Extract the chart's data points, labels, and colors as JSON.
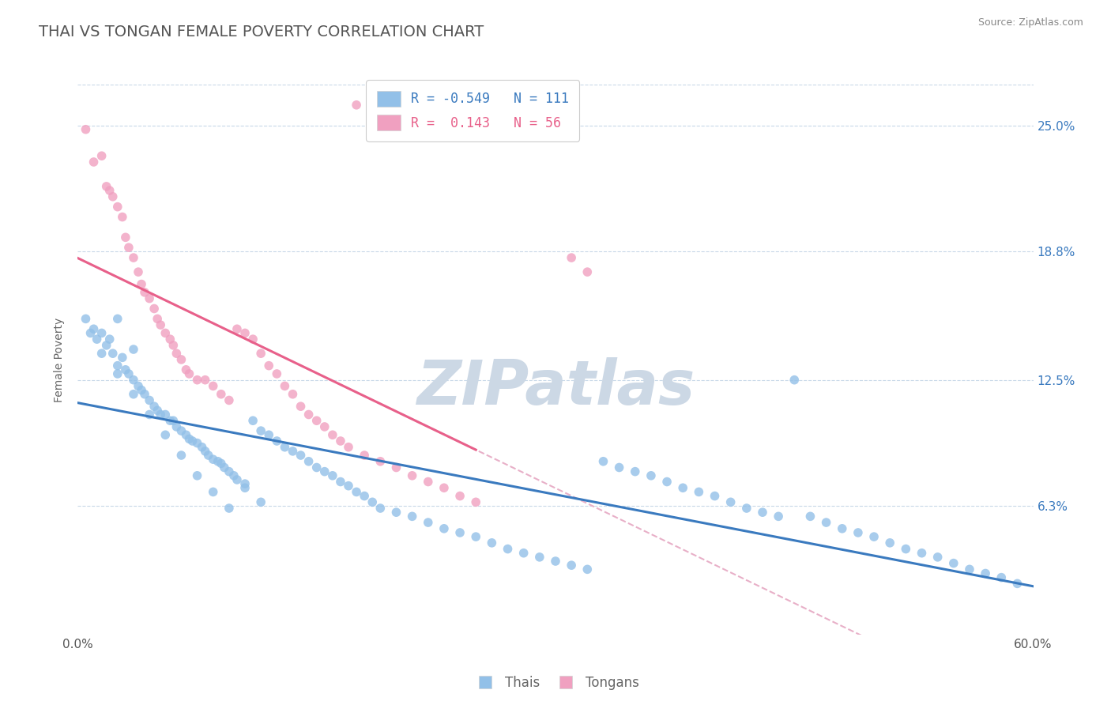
{
  "title": "THAI VS TONGAN FEMALE POVERTY CORRELATION CHART",
  "source": "Source: ZipAtlas.com",
  "ylabel": "Female Poverty",
  "xlim": [
    0.0,
    0.6
  ],
  "ylim": [
    0.0,
    0.27
  ],
  "yticks": [
    0.063,
    0.125,
    0.188,
    0.25
  ],
  "ytick_labels": [
    "6.3%",
    "12.5%",
    "18.8%",
    "25.0%"
  ],
  "xtick_labels_ends": [
    "0.0%",
    "60.0%"
  ],
  "thai_color": "#92c0e8",
  "tongan_color": "#f0a0c0",
  "thai_line_color": "#3a7abf",
  "tongan_line_color": "#e8608a",
  "tongan_dash_color": "#e8b0c8",
  "watermark_color": "#ccd8e5",
  "title_color": "#555555",
  "title_fontsize": 14,
  "axis_label_color": "#666666",
  "tick_color": "#555555",
  "grid_color": "#c8d8e8",
  "thai_scatter": {
    "x": [
      0.005,
      0.008,
      0.01,
      0.012,
      0.015,
      0.018,
      0.02,
      0.022,
      0.025,
      0.028,
      0.03,
      0.032,
      0.035,
      0.038,
      0.04,
      0.042,
      0.045,
      0.048,
      0.05,
      0.052,
      0.055,
      0.058,
      0.06,
      0.062,
      0.065,
      0.068,
      0.07,
      0.072,
      0.075,
      0.078,
      0.08,
      0.082,
      0.085,
      0.088,
      0.09,
      0.092,
      0.095,
      0.098,
      0.1,
      0.105,
      0.11,
      0.115,
      0.12,
      0.125,
      0.13,
      0.135,
      0.14,
      0.145,
      0.15,
      0.155,
      0.16,
      0.165,
      0.17,
      0.175,
      0.18,
      0.185,
      0.19,
      0.2,
      0.21,
      0.22,
      0.23,
      0.24,
      0.25,
      0.26,
      0.27,
      0.28,
      0.29,
      0.3,
      0.31,
      0.32,
      0.33,
      0.34,
      0.35,
      0.36,
      0.37,
      0.38,
      0.39,
      0.4,
      0.41,
      0.42,
      0.43,
      0.44,
      0.45,
      0.46,
      0.47,
      0.48,
      0.49,
      0.5,
      0.51,
      0.52,
      0.53,
      0.54,
      0.55,
      0.56,
      0.57,
      0.58,
      0.59,
      0.015,
      0.025,
      0.035,
      0.045,
      0.055,
      0.065,
      0.075,
      0.085,
      0.095,
      0.105,
      0.115,
      0.025,
      0.035
    ],
    "y": [
      0.155,
      0.148,
      0.15,
      0.145,
      0.148,
      0.142,
      0.145,
      0.138,
      0.132,
      0.136,
      0.13,
      0.128,
      0.125,
      0.122,
      0.12,
      0.118,
      0.115,
      0.112,
      0.11,
      0.108,
      0.108,
      0.105,
      0.105,
      0.102,
      0.1,
      0.098,
      0.096,
      0.095,
      0.094,
      0.092,
      0.09,
      0.088,
      0.086,
      0.085,
      0.084,
      0.082,
      0.08,
      0.078,
      0.076,
      0.074,
      0.105,
      0.1,
      0.098,
      0.095,
      0.092,
      0.09,
      0.088,
      0.085,
      0.082,
      0.08,
      0.078,
      0.075,
      0.073,
      0.07,
      0.068,
      0.065,
      0.062,
      0.06,
      0.058,
      0.055,
      0.052,
      0.05,
      0.048,
      0.045,
      0.042,
      0.04,
      0.038,
      0.036,
      0.034,
      0.032,
      0.085,
      0.082,
      0.08,
      0.078,
      0.075,
      0.072,
      0.07,
      0.068,
      0.065,
      0.062,
      0.06,
      0.058,
      0.125,
      0.058,
      0.055,
      0.052,
      0.05,
      0.048,
      0.045,
      0.042,
      0.04,
      0.038,
      0.035,
      0.032,
      0.03,
      0.028,
      0.025,
      0.138,
      0.128,
      0.118,
      0.108,
      0.098,
      0.088,
      0.078,
      0.07,
      0.062,
      0.072,
      0.065,
      0.155,
      0.14
    ]
  },
  "tongan_scatter": {
    "x": [
      0.005,
      0.01,
      0.015,
      0.018,
      0.02,
      0.022,
      0.025,
      0.028,
      0.03,
      0.032,
      0.035,
      0.038,
      0.04,
      0.042,
      0.045,
      0.048,
      0.05,
      0.052,
      0.055,
      0.058,
      0.06,
      0.062,
      0.065,
      0.068,
      0.07,
      0.075,
      0.08,
      0.085,
      0.09,
      0.095,
      0.1,
      0.105,
      0.11,
      0.115,
      0.12,
      0.125,
      0.13,
      0.135,
      0.14,
      0.145,
      0.15,
      0.155,
      0.16,
      0.165,
      0.17,
      0.175,
      0.18,
      0.19,
      0.2,
      0.21,
      0.22,
      0.23,
      0.24,
      0.25,
      0.31,
      0.32
    ],
    "y": [
      0.248,
      0.232,
      0.235,
      0.22,
      0.218,
      0.215,
      0.21,
      0.205,
      0.195,
      0.19,
      0.185,
      0.178,
      0.172,
      0.168,
      0.165,
      0.16,
      0.155,
      0.152,
      0.148,
      0.145,
      0.142,
      0.138,
      0.135,
      0.13,
      0.128,
      0.125,
      0.125,
      0.122,
      0.118,
      0.115,
      0.15,
      0.148,
      0.145,
      0.138,
      0.132,
      0.128,
      0.122,
      0.118,
      0.112,
      0.108,
      0.105,
      0.102,
      0.098,
      0.095,
      0.092,
      0.26,
      0.088,
      0.085,
      0.082,
      0.078,
      0.075,
      0.072,
      0.068,
      0.065,
      0.185,
      0.178
    ]
  }
}
